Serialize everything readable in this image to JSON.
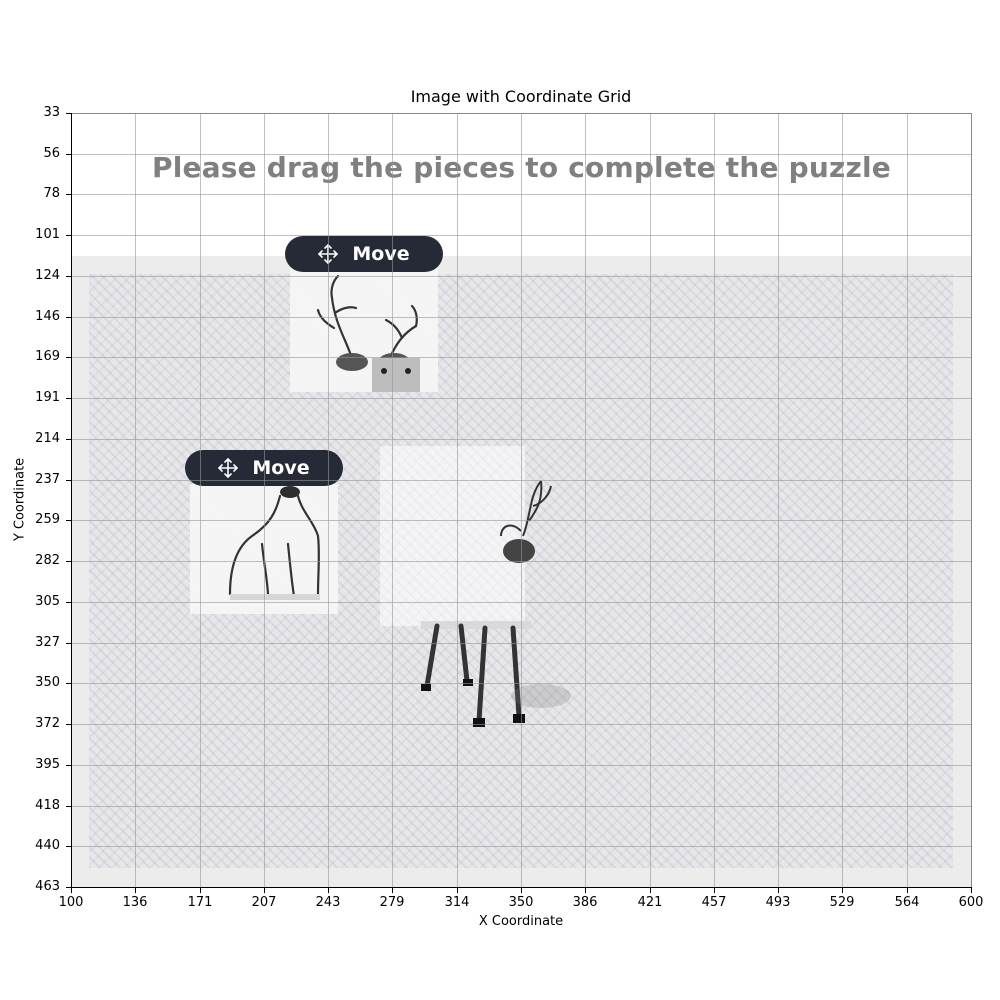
{
  "figure": {
    "title": "Image with Coordinate Grid",
    "x_axis_label": "X Coordinate",
    "y_axis_label": "Y Coordinate",
    "x_ticks": [
      "100",
      "136",
      "171",
      "207",
      "243",
      "279",
      "314",
      "350",
      "386",
      "421",
      "457",
      "493",
      "529",
      "564",
      "600"
    ],
    "y_ticks": [
      "33",
      "56",
      "78",
      "101",
      "124",
      "146",
      "169",
      "191",
      "214",
      "237",
      "259",
      "282",
      "305",
      "327",
      "350",
      "372",
      "395",
      "418",
      "440",
      "463"
    ]
  },
  "puzzle": {
    "instruction": "Please drag the pieces to complete the puzzle",
    "pieces": [
      {
        "button_label": "Move",
        "icon": "move-arrows-icon",
        "content": "deer-antlers-piece"
      },
      {
        "button_label": "Move",
        "icon": "move-arrows-icon",
        "content": "deer-body-piece"
      }
    ]
  },
  "colors": {
    "button_bg": "#262a36",
    "heading": "#808080",
    "captcha_bg": "#ececec"
  }
}
